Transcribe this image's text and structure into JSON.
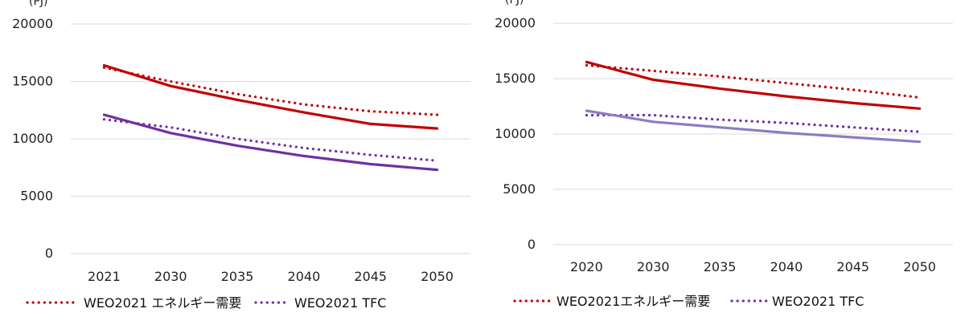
{
  "colors": {
    "demand_red": "#c00000",
    "tfc_purple_left": "#7030a0",
    "tfc_purple_right": "#8e7cc3",
    "grid": "#d9d9d9",
    "text": "#222222"
  },
  "chart_data": [
    {
      "type": "line",
      "unit_label": "(PJ)",
      "categories": [
        "2021",
        "2030",
        "2035",
        "2040",
        "2045",
        "2050"
      ],
      "ylim": [
        0,
        20000
      ],
      "yticks": [
        "0",
        "5000",
        "10000",
        "15000",
        "20000"
      ],
      "grid": true,
      "legend_position": "bottom",
      "legend": [
        "WEO2021 エネルギー需要",
        "WEO2021 TFC"
      ],
      "series": [
        {
          "name": "WEO2021 エネルギー需要",
          "style": "dotted",
          "color": "#c00000",
          "values": [
            16200,
            15000,
            13900,
            13000,
            12400,
            12100
          ]
        },
        {
          "style": "solid",
          "color": "#c00000",
          "values": [
            16400,
            14600,
            13400,
            12300,
            11300,
            10900
          ]
        },
        {
          "name": "WEO2021 TFC",
          "style": "dotted",
          "color": "#7030a0",
          "values": [
            11700,
            11000,
            10000,
            9200,
            8600,
            8100
          ]
        },
        {
          "style": "solid",
          "color": "#7030a0",
          "values": [
            12100,
            10500,
            9400,
            8500,
            7800,
            7300
          ]
        }
      ]
    },
    {
      "type": "line",
      "unit_label": "(PJ)",
      "categories": [
        "2020",
        "2030",
        "2035",
        "2040",
        "2045",
        "2050"
      ],
      "ylim": [
        0,
        20000
      ],
      "yticks": [
        "0",
        "5000",
        "10000",
        "15000",
        "20000"
      ],
      "grid": true,
      "legend_position": "bottom",
      "legend": [
        "WEO2021エネルギー需要",
        "WEO2021 TFC"
      ],
      "series": [
        {
          "name": "WEO2021エネルギー需要",
          "style": "dotted",
          "color": "#c00000",
          "values": [
            16200,
            15700,
            15200,
            14600,
            14000,
            13300
          ]
        },
        {
          "style": "solid",
          "color": "#c00000",
          "values": [
            16500,
            14900,
            14100,
            13400,
            12800,
            12300
          ]
        },
        {
          "name": "WEO2021 TFC",
          "style": "dotted",
          "color": "#7030a0",
          "values": [
            11700,
            11700,
            11300,
            11000,
            10600,
            10200
          ]
        },
        {
          "style": "solid",
          "color": "#8e7cc3",
          "values": [
            12100,
            11100,
            10600,
            10100,
            9700,
            9300
          ]
        }
      ]
    }
  ]
}
